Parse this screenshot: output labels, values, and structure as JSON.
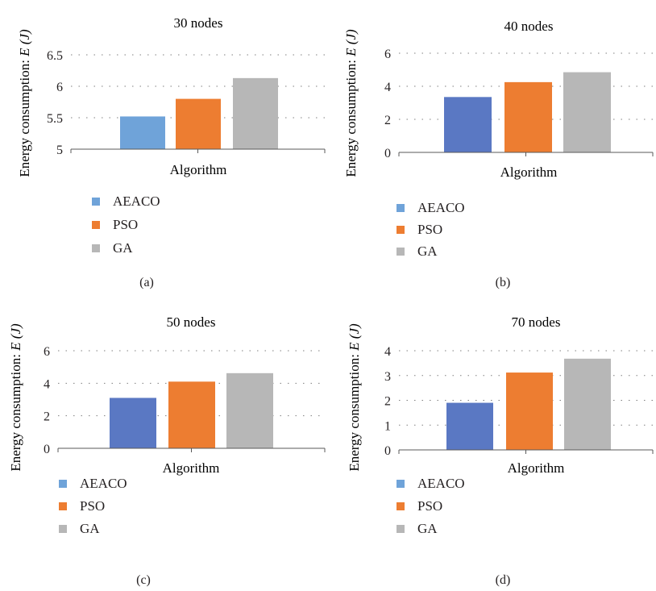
{
  "chart_data": [
    {
      "type": "bar",
      "panel_label": "(a)",
      "title": "30 nodes",
      "xlabel": "Algorithm",
      "ylabel_prefix": "Energy consumption: ",
      "ylabel_var": "E (J)",
      "ylim": [
        5,
        6.5
      ],
      "yticks": [
        "5",
        "5.5",
        "6",
        "6.5"
      ],
      "ytick_values": [
        5,
        5.5,
        6,
        6.5
      ],
      "grid": "dotted-horizontal",
      "legend_placement": "below",
      "series": [
        {
          "name": "AEACO",
          "value": 5.52,
          "color": "#6fa3d9"
        },
        {
          "name": "PSO",
          "value": 5.8,
          "color": "#ed7d31"
        },
        {
          "name": "GA",
          "value": 6.13,
          "color": "#b7b7b7"
        }
      ]
    },
    {
      "type": "bar",
      "panel_label": "(b)",
      "title": "40 nodes",
      "xlabel": "Algorithm",
      "ylabel_prefix": "Energy consumption: ",
      "ylabel_var": "E (J)",
      "ylim": [
        0,
        6
      ],
      "yticks": [
        "0",
        "2",
        "4",
        "6"
      ],
      "ytick_values": [
        0,
        2,
        4,
        6
      ],
      "grid": "dotted-horizontal",
      "legend_placement": "below",
      "series": [
        {
          "name": "AEACO",
          "value": 3.35,
          "color": "#5a78c3"
        },
        {
          "name": "PSO",
          "value": 4.25,
          "color": "#ed7d31"
        },
        {
          "name": "GA",
          "value": 4.85,
          "color": "#b7b7b7"
        }
      ],
      "legend_colors": [
        "#6fa3d9",
        "#ed7d31",
        "#b7b7b7"
      ]
    },
    {
      "type": "bar",
      "panel_label": "(c)",
      "title": "50 nodes",
      "xlabel": "Algorithm",
      "ylabel_prefix": "Energy consumption: ",
      "ylabel_var": "E (J)",
      "ylim": [
        0,
        6
      ],
      "yticks": [
        "0",
        "2",
        "4",
        "6"
      ],
      "ytick_values": [
        0,
        2,
        4,
        6
      ],
      "grid": "dotted-horizontal",
      "legend_placement": "below",
      "series": [
        {
          "name": "AEACO",
          "value": 3.1,
          "color": "#5a78c3"
        },
        {
          "name": "PSO",
          "value": 4.1,
          "color": "#ed7d31"
        },
        {
          "name": "GA",
          "value": 4.62,
          "color": "#b7b7b7"
        }
      ],
      "legend_colors": [
        "#6fa3d9",
        "#ed7d31",
        "#b7b7b7"
      ]
    },
    {
      "type": "bar",
      "panel_label": "(d)",
      "title": "70 nodes",
      "xlabel": "Algorithm",
      "ylabel_prefix": "Energy consumption: ",
      "ylabel_var": "E (J)",
      "ylim": [
        0,
        4
      ],
      "yticks": [
        "0",
        "1",
        "2",
        "3",
        "4"
      ],
      "ytick_values": [
        0,
        1,
        2,
        3,
        4
      ],
      "grid": "dotted-horizontal",
      "legend_placement": "below",
      "series": [
        {
          "name": "AEACO",
          "value": 1.9,
          "color": "#5a78c3"
        },
        {
          "name": "PSO",
          "value": 3.12,
          "color": "#ed7d31"
        },
        {
          "name": "GA",
          "value": 3.68,
          "color": "#b7b7b7"
        }
      ],
      "legend_colors": [
        "#6fa3d9",
        "#ed7d31",
        "#b7b7b7"
      ]
    }
  ]
}
